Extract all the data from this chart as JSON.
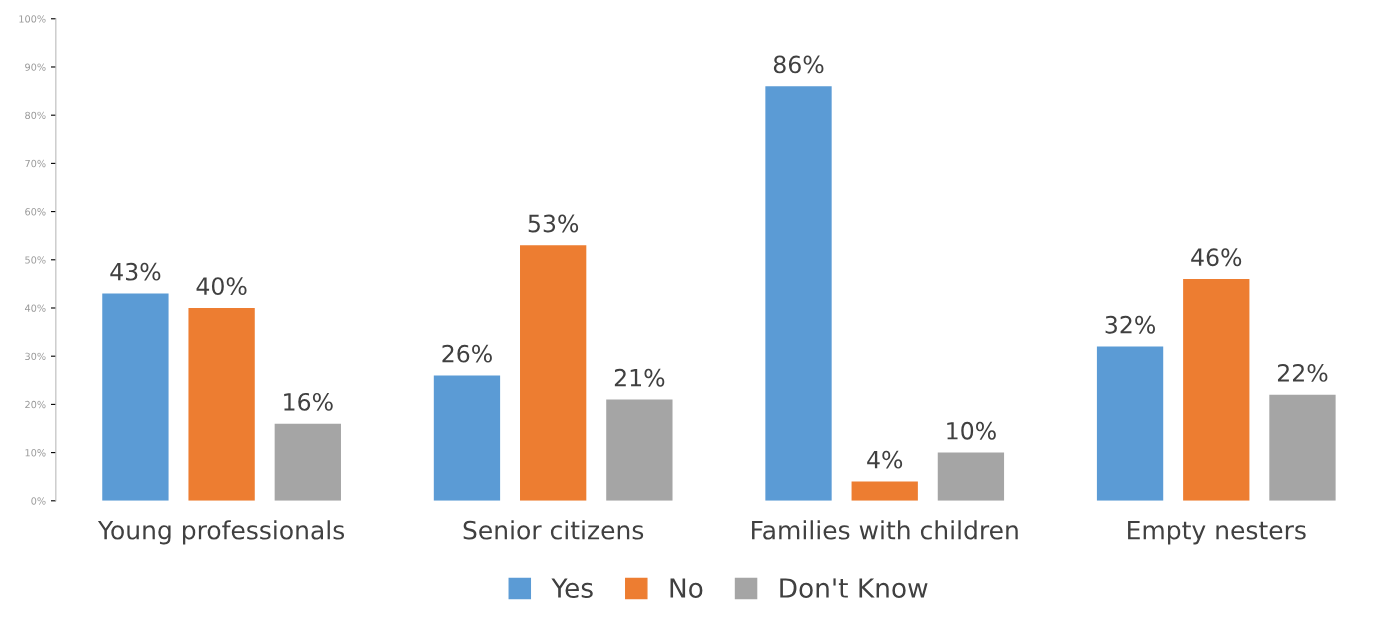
{
  "chart_data": {
    "type": "bar",
    "categories": [
      "Young professionals",
      "Senior citizens",
      "Families with children",
      "Empty nesters"
    ],
    "series": [
      {
        "name": "Yes",
        "color": "#5b9bd5",
        "values": [
          43,
          26,
          86,
          32
        ],
        "value_labels": [
          "43%",
          "26%",
          "86%",
          "32%"
        ]
      },
      {
        "name": "No",
        "color": "#ed7d31",
        "values": [
          40,
          53,
          4,
          46
        ],
        "value_labels": [
          "40%",
          "53%",
          "4%",
          "46%"
        ]
      },
      {
        "name": "Don't Know",
        "color": "#a5a5a5",
        "values": [
          16,
          21,
          10,
          22
        ],
        "value_labels": [
          "16%",
          "21%",
          "10%",
          "22%"
        ]
      }
    ],
    "ylim": [
      0,
      100
    ],
    "yticks": [
      {
        "value": 0,
        "label": "0%"
      },
      {
        "value": 10,
        "label": "10%"
      },
      {
        "value": 20,
        "label": "20%"
      },
      {
        "value": 30,
        "label": "30%"
      },
      {
        "value": 40,
        "label": "40%"
      },
      {
        "value": 50,
        "label": "50%"
      },
      {
        "value": 60,
        "label": "60%"
      },
      {
        "value": 70,
        "label": "70%"
      },
      {
        "value": 80,
        "label": "80%"
      },
      {
        "value": 90,
        "label": "90%"
      },
      {
        "value": 100,
        "label": "100%"
      }
    ],
    "legend": "bottom"
  }
}
